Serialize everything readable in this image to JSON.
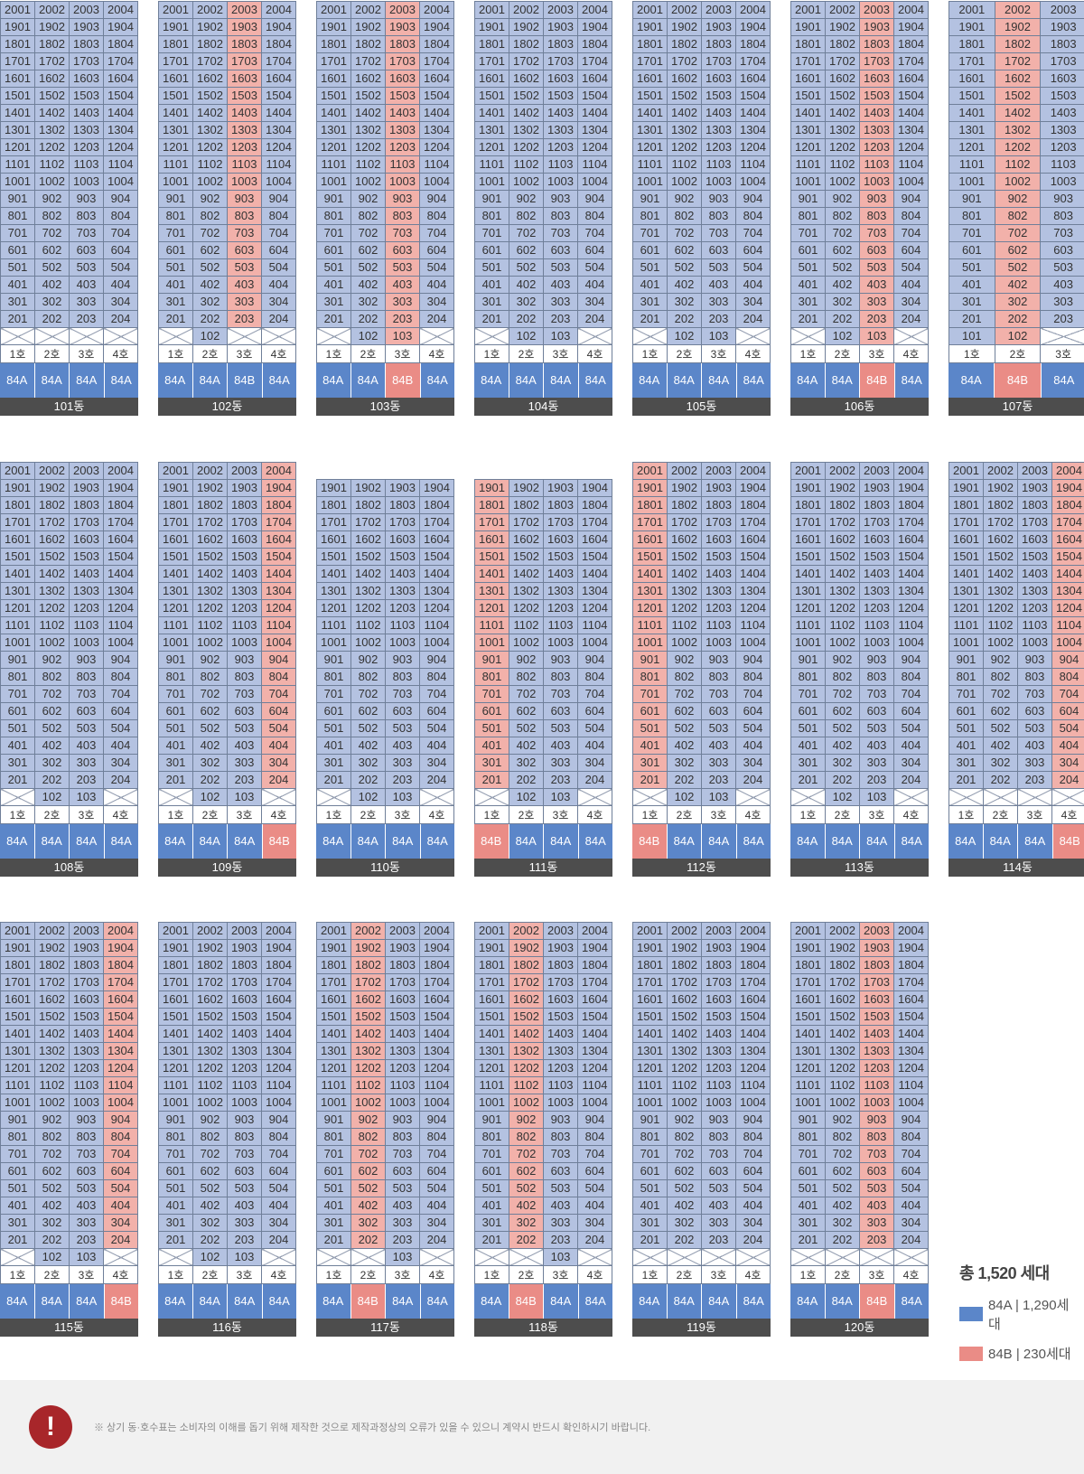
{
  "colors": {
    "A": "#b4c2e1",
    "B": "#f2b1aa",
    "typeA": "#5b86c9",
    "typeB": "#ea8c86"
  },
  "ho_labels": [
    "1호",
    "2호",
    "3호",
    "4호"
  ],
  "buildings": [
    {
      "name": "101동",
      "units": 4,
      "top": 20,
      "bFloor": [],
      "bType": [],
      "f1": [],
      "types": [
        "84A",
        "84A",
        "84A",
        "84A"
      ]
    },
    {
      "name": "102동",
      "units": 4,
      "top": 20,
      "bFloor": [
        3
      ],
      "bType": [],
      "f1": [
        2
      ],
      "types": [
        "84A",
        "84A",
        "84B",
        "84A"
      ]
    },
    {
      "name": "103동",
      "units": 4,
      "top": 20,
      "bFloor": [
        3
      ],
      "bType": [
        3
      ],
      "f1": [
        2,
        3
      ],
      "types": [
        "84A",
        "84A",
        "84B",
        "84A"
      ]
    },
    {
      "name": "104동",
      "units": 4,
      "top": 20,
      "bFloor": [],
      "bType": [],
      "f1": [
        2,
        3
      ],
      "types": [
        "84A",
        "84A",
        "84A",
        "84A"
      ]
    },
    {
      "name": "105동",
      "units": 4,
      "top": 20,
      "bFloor": [],
      "bType": [],
      "f1": [
        2,
        3
      ],
      "types": [
        "84A",
        "84A",
        "84A",
        "84A"
      ]
    },
    {
      "name": "106동",
      "units": 4,
      "top": 20,
      "bFloor": [
        3
      ],
      "bType": [
        3
      ],
      "f1": [
        2,
        3
      ],
      "types": [
        "84A",
        "84A",
        "84B",
        "84A"
      ]
    },
    {
      "name": "107동",
      "units": 3,
      "top": 20,
      "bFloor": [
        2
      ],
      "bType": [
        2
      ],
      "f1": [
        1,
        2
      ],
      "types": [
        "84A",
        "84B",
        "84A"
      ]
    },
    {
      "name": "108동",
      "units": 4,
      "top": 20,
      "bFloor": [],
      "bType": [],
      "f1": [
        2,
        3
      ],
      "types": [
        "84A",
        "84A",
        "84A",
        "84A"
      ]
    },
    {
      "name": "109동",
      "units": 4,
      "top": 20,
      "bFloor": [
        4
      ],
      "bType": [
        4
      ],
      "f1": [
        2,
        3
      ],
      "types": [
        "84A",
        "84A",
        "84A",
        "84B"
      ]
    },
    {
      "name": "110동",
      "units": 4,
      "top": 19,
      "bFloor": [],
      "bType": [],
      "f1": [
        2,
        3
      ],
      "types": [
        "84A",
        "84A",
        "84A",
        "84A"
      ]
    },
    {
      "name": "111동",
      "units": 4,
      "top": 19,
      "bFloor": [
        1
      ],
      "bType": [
        1
      ],
      "f1": [
        2,
        3
      ],
      "types": [
        "84B",
        "84A",
        "84A",
        "84A"
      ]
    },
    {
      "name": "112동",
      "units": 4,
      "top": 20,
      "bFloor": [
        1
      ],
      "bType": [
        1
      ],
      "f1": [
        2,
        3
      ],
      "types": [
        "84B",
        "84A",
        "84A",
        "84A"
      ]
    },
    {
      "name": "113동",
      "units": 4,
      "top": 20,
      "bFloor": [],
      "bType": [],
      "f1": [
        2,
        3
      ],
      "types": [
        "84A",
        "84A",
        "84A",
        "84A"
      ]
    },
    {
      "name": "114동",
      "units": 4,
      "top": 20,
      "bFloor": [
        4
      ],
      "bType": [
        4
      ],
      "f1": [],
      "types": [
        "84A",
        "84A",
        "84A",
        "84B"
      ]
    },
    {
      "name": "115동",
      "units": 4,
      "top": 20,
      "bFloor": [
        4
      ],
      "bType": [
        4
      ],
      "f1": [
        2,
        3
      ],
      "types": [
        "84A",
        "84A",
        "84A",
        "84B"
      ]
    },
    {
      "name": "116동",
      "units": 4,
      "top": 20,
      "bFloor": [],
      "bType": [],
      "f1": [
        2,
        3
      ],
      "types": [
        "84A",
        "84A",
        "84A",
        "84A"
      ]
    },
    {
      "name": "117동",
      "units": 4,
      "top": 20,
      "bFloor": [
        2
      ],
      "bType": [
        2
      ],
      "f1": [
        3
      ],
      "types": [
        "84A",
        "84B",
        "84A",
        "84A"
      ]
    },
    {
      "name": "118동",
      "units": 4,
      "top": 20,
      "bFloor": [
        2
      ],
      "bType": [
        2
      ],
      "f1": [
        3
      ],
      "types": [
        "84A",
        "84B",
        "84A",
        "84A"
      ]
    },
    {
      "name": "119동",
      "units": 4,
      "top": 20,
      "bFloor": [],
      "bType": [],
      "f1": [],
      "types": [
        "84A",
        "84A",
        "84A",
        "84A"
      ]
    },
    {
      "name": "120동",
      "units": 4,
      "top": 20,
      "bFloor": [
        3
      ],
      "bType": [
        3
      ],
      "f1": [],
      "types": [
        "84A",
        "84A",
        "84B",
        "84A"
      ]
    }
  ],
  "legend": {
    "total": "총 1,520 세대",
    "items": [
      {
        "label": "84A | 1,290세대",
        "color": "#5b86c9"
      },
      {
        "label": "84B | 230세대",
        "color": "#ea8c86"
      }
    ]
  },
  "notice": {
    "icon": "!",
    "text": "※ 상기 동·호수표는 소비자의 이해를 돕기 위해 제작한 것으로 제작과정상의 오류가 있을 수 있으니 계약시 반드시 확인하시기 바랍니다."
  }
}
